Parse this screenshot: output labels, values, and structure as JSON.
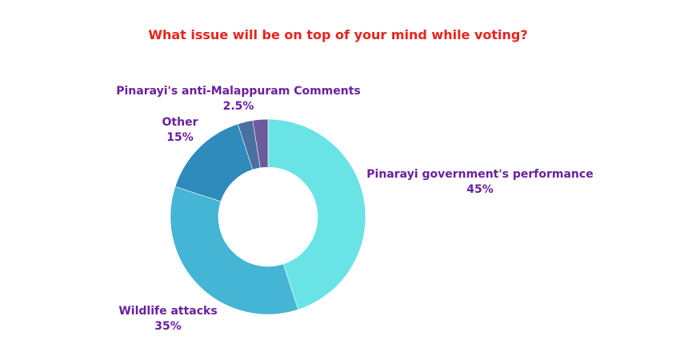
{
  "title": "What issue will be on top of your mind while voting?",
  "colors": {
    "title": "#e8231d",
    "labels": "#6a1fa0"
  },
  "chart_data": {
    "type": "pie",
    "variant": "donut",
    "title": "What issue will be on top of your mind while voting?",
    "categories": [
      "Pinarayi government's performance",
      "Wildlife attacks",
      "Other",
      "Pinarayi's anti-Malappuram Comments",
      ""
    ],
    "values": [
      45,
      35,
      15,
      2.5,
      2.5
    ],
    "value_labels": [
      "45%",
      "35%",
      "15%",
      "2.5%",
      ""
    ],
    "colors": [
      "#6ae3e6",
      "#44b5d4",
      "#2e8bbb",
      "#4a6fa1",
      "#6b5b9a"
    ],
    "legend": "none"
  }
}
